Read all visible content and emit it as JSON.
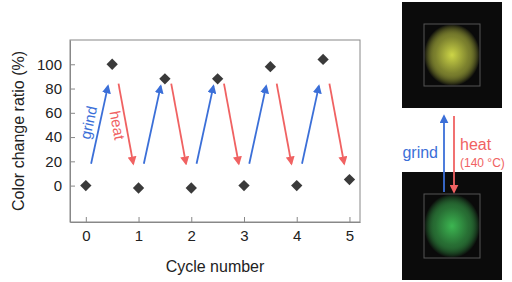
{
  "chart_data": {
    "type": "scatter",
    "x": [
      0,
      0.5,
      1,
      1.5,
      2,
      2.5,
      3,
      3.5,
      4,
      4.5,
      5
    ],
    "values": [
      0,
      100,
      -2,
      88,
      -2,
      88,
      0,
      98,
      0,
      104,
      5
    ],
    "color": "#3a3a3a",
    "marker": "diamond",
    "xlim": [
      -0.3,
      5.2
    ],
    "ylim": [
      -30,
      120
    ],
    "xticks": [
      0,
      1,
      2,
      3,
      4,
      5
    ],
    "yticks": [
      0,
      20,
      40,
      60,
      80,
      100
    ],
    "x_label": "Cycle number",
    "y_label": "Color change ratio (%)",
    "annotations": [
      {
        "text": "grind",
        "color": "#3b6fd8",
        "arrows": [
          {
            "x": [
              0.1,
              0.42
            ],
            "y": [
              18,
              82
            ]
          },
          {
            "x": [
              1.1,
              1.42
            ],
            "y": [
              18,
              82
            ]
          },
          {
            "x": [
              2.1,
              2.42
            ],
            "y": [
              18,
              82
            ]
          },
          {
            "x": [
              3.1,
              3.42
            ],
            "y": [
              18,
              82
            ]
          },
          {
            "x": [
              4.1,
              4.42
            ],
            "y": [
              18,
              82
            ]
          }
        ]
      },
      {
        "text": "heat",
        "color": "#f06262",
        "arrows": [
          {
            "x": [
              0.62,
              0.9
            ],
            "y": [
              84,
              18
            ]
          },
          {
            "x": [
              1.62,
              1.9
            ],
            "y": [
              84,
              18
            ]
          },
          {
            "x": [
              2.62,
              2.9
            ],
            "y": [
              84,
              18
            ]
          },
          {
            "x": [
              3.62,
              3.9
            ],
            "y": [
              84,
              18
            ]
          },
          {
            "x": [
              4.62,
              4.9
            ],
            "y": [
              84,
              18
            ]
          }
        ]
      }
    ],
    "side_labels": {
      "up": {
        "text": "grind",
        "color": "#3b6fd8"
      },
      "down": {
        "text": "heat",
        "note": "(140 °C)",
        "color": "#f06262"
      }
    }
  }
}
